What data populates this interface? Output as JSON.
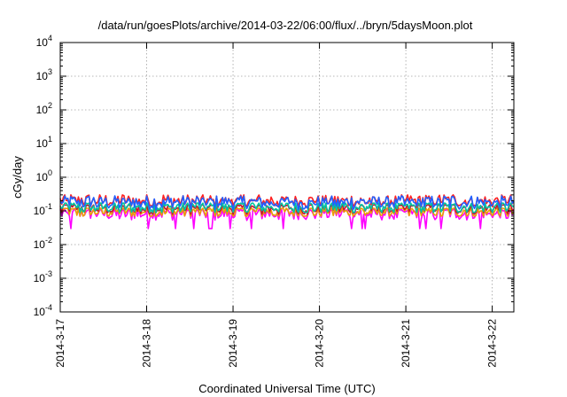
{
  "chart_data": {
    "type": "line",
    "title": "/data/run/goesPlots/archive/2014-03-22/06:00/flux/../bryn/5daysMoon.plot",
    "xlabel": "Coordinated Universal Time (UTC)",
    "ylabel": "cGy/day",
    "y_scale": "log",
    "ylim": [
      0.0001,
      10000
    ],
    "y_ticks": [
      {
        "base": "10",
        "exp": "-4",
        "value": 0.0001
      },
      {
        "base": "10",
        "exp": "-3",
        "value": 0.001
      },
      {
        "base": "10",
        "exp": "-2",
        "value": 0.01
      },
      {
        "base": "10",
        "exp": "-1",
        "value": 0.1
      },
      {
        "base": "10",
        "exp": "0",
        "value": 1
      },
      {
        "base": "10",
        "exp": "1",
        "value": 10
      },
      {
        "base": "10",
        "exp": "2",
        "value": 100
      },
      {
        "base": "10",
        "exp": "3",
        "value": 1000
      },
      {
        "base": "10",
        "exp": "4",
        "value": 10000
      }
    ],
    "x_ticks": [
      "2014-3-17",
      "2014-3-18",
      "2014-3-19",
      "2014-3-20",
      "2014-3-21",
      "2014-3-22"
    ],
    "xlim": [
      "2014-03-17 00:00",
      "2014-03-22 06:00"
    ],
    "grid": true,
    "legend": "none",
    "series": [
      {
        "color": "#ff00ff",
        "base": 0.085,
        "min": 0.03,
        "max": 0.11
      },
      {
        "color": "#e8a000",
        "base": 0.095,
        "min": 0.07,
        "max": 0.12
      },
      {
        "color": "#c8102e",
        "base": 0.12,
        "min": 0.08,
        "max": 0.15
      },
      {
        "color": "#00c4a0",
        "base": 0.13,
        "min": 0.09,
        "max": 0.17
      },
      {
        "color": "#ff2020",
        "base": 0.2,
        "min": 0.12,
        "max": 0.3
      },
      {
        "color": "#2060ff",
        "base": 0.18,
        "min": 0.1,
        "max": 0.28
      }
    ]
  }
}
